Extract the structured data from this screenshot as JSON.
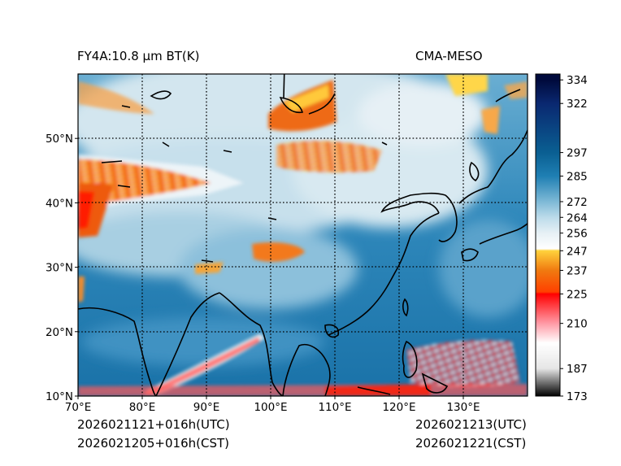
{
  "header": {
    "left_title": "FY4A:10.8 μm BT(K)",
    "right_title": "CMA-MESO"
  },
  "footer": {
    "init_utc": "2026021121+016h(UTC)",
    "init_cst": "2026021205+016h(CST)",
    "valid_utc": "2026021213(UTC)",
    "valid_cst": "2026021221(CST)"
  },
  "map": {
    "lon_range": [
      70,
      140
    ],
    "lat_range": [
      10,
      60
    ],
    "lon_ticks": [
      {
        "value": 70,
        "label": "70°E"
      },
      {
        "value": 80,
        "label": "80°E"
      },
      {
        "value": 90,
        "label": "90°E"
      },
      {
        "value": 100,
        "label": "100°E"
      },
      {
        "value": 110,
        "label": "110°E"
      },
      {
        "value": 120,
        "label": "120°E"
      },
      {
        "value": 130,
        "label": "130°E"
      }
    ],
    "lat_ticks": [
      {
        "value": 10,
        "label": "10°N"
      },
      {
        "value": 20,
        "label": "20°N"
      },
      {
        "value": 30,
        "label": "30°N"
      },
      {
        "value": 40,
        "label": "40°N"
      },
      {
        "value": 50,
        "label": "50°N"
      }
    ],
    "grid_style": "dotted"
  },
  "colorbar": {
    "range": [
      173,
      337
    ],
    "tick_values": [
      173,
      187,
      210,
      225,
      237,
      247,
      256,
      264,
      272,
      285,
      297,
      322,
      334
    ],
    "tick_labels": [
      "173",
      "187",
      "210",
      "225",
      "237",
      "247",
      "256",
      "264",
      "272",
      "285",
      "297",
      "322",
      "334"
    ],
    "stops": [
      {
        "value": 173,
        "color": "#000000"
      },
      {
        "value": 187,
        "color": "#e6e6e6"
      },
      {
        "value": 200,
        "color": "#ffffff"
      },
      {
        "value": 210,
        "color": "#ff9aa6"
      },
      {
        "value": 225,
        "color": "#ff0000"
      },
      {
        "value": 226,
        "color": "#ff4000"
      },
      {
        "value": 237,
        "color": "#f07a10"
      },
      {
        "value": 247,
        "color": "#ffd23c"
      },
      {
        "value": 248,
        "color": "#ffffff"
      },
      {
        "value": 256,
        "color": "#e6f0f5"
      },
      {
        "value": 264,
        "color": "#bcdbea"
      },
      {
        "value": 272,
        "color": "#7eb9d6"
      },
      {
        "value": 285,
        "color": "#1f7fb3"
      },
      {
        "value": 297,
        "color": "#0a5f92"
      },
      {
        "value": 322,
        "color": "#0a2870"
      },
      {
        "value": 334,
        "color": "#000a3c"
      }
    ]
  }
}
